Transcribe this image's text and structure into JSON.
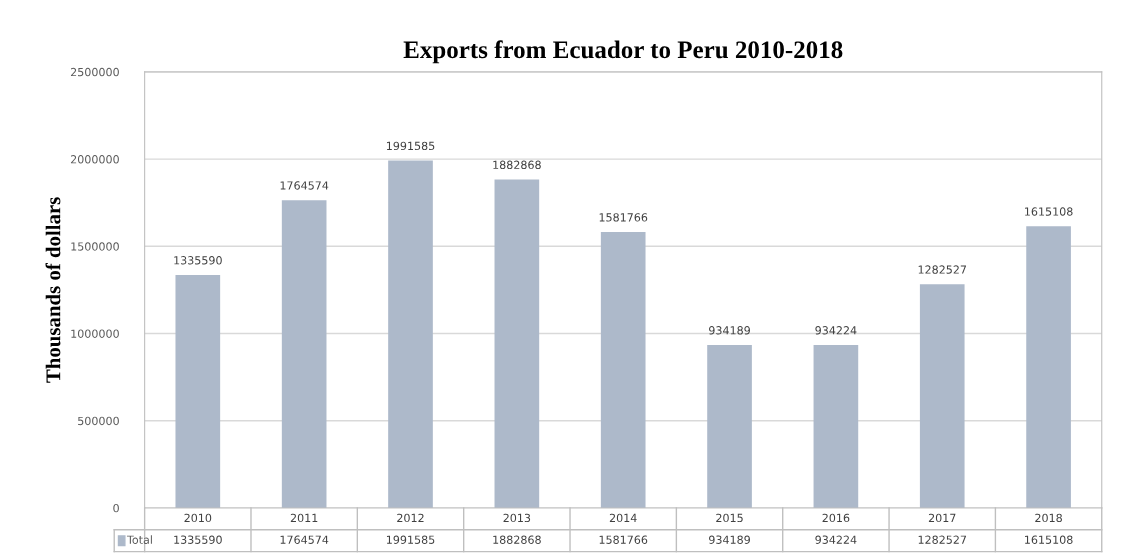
{
  "chart_data": {
    "type": "bar",
    "title": "Exports from Ecuador to Peru 2010-2018",
    "ylabel": "Thousands of dollars",
    "categories": [
      "2010",
      "2011",
      "2012",
      "2013",
      "2014",
      "2015",
      "2016",
      "2017",
      "2018"
    ],
    "series": [
      {
        "name": "Total",
        "color": "#adb9ca",
        "values": [
          1335590,
          1764574,
          1991585,
          1882868,
          1581766,
          934189,
          934224,
          1282527,
          1615108
        ],
        "value_labels": [
          "1335590",
          "1764574",
          "1991585",
          "1882868",
          "1581766",
          "934189",
          "934224",
          "1282527",
          "1615108"
        ]
      }
    ],
    "annotations": [
      "1335590",
      "1764574",
      "1991585",
      "1882868",
      "1581766",
      "934189",
      "934224",
      "1282527",
      "1615108"
    ],
    "ylim": [
      0,
      2500000
    ],
    "yticks": [
      0,
      500000,
      1000000,
      1500000,
      2000000,
      2500000
    ],
    "grid": "y",
    "legend": "bottom"
  }
}
